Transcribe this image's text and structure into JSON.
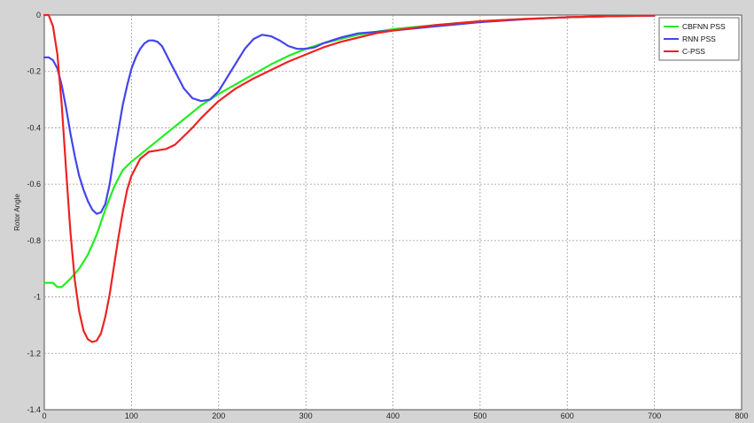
{
  "chart_data": {
    "type": "line",
    "title": "",
    "xlabel": "",
    "ylabel": "Rotor Angle",
    "xlim": [
      0,
      800
    ],
    "ylim": [
      -1.4,
      0
    ],
    "x_ticks": [
      0,
      100,
      200,
      300,
      400,
      500,
      600,
      700,
      800
    ],
    "y_ticks": [
      0,
      -0.2,
      -0.4,
      -0.6,
      -0.8,
      -1,
      -1.2,
      -1.4
    ],
    "x_tick_labels": [
      "0",
      "100",
      "200",
      "300",
      "400",
      "500",
      "600",
      "700",
      "800"
    ],
    "y_tick_labels": [
      "0",
      "-0.2",
      "-0.4",
      "-0.6",
      "-0.8",
      "-1",
      "-1.2",
      "-1.4"
    ],
    "grid": true,
    "legend_position": "top-right",
    "series": [
      {
        "name": "CBFNN PSS",
        "color": "#22ee22",
        "x": [
          0,
          10,
          15,
          20,
          25,
          30,
          40,
          50,
          60,
          70,
          80,
          90,
          100,
          120,
          140,
          160,
          180,
          200,
          220,
          240,
          260,
          280,
          300,
          320,
          340,
          360,
          380,
          400,
          450,
          500,
          550,
          600,
          650,
          700
        ],
        "y": [
          -0.95,
          -0.95,
          -0.965,
          -0.965,
          -0.95,
          -0.935,
          -0.9,
          -0.85,
          -0.78,
          -0.69,
          -0.61,
          -0.55,
          -0.52,
          -0.47,
          -0.42,
          -0.37,
          -0.32,
          -0.28,
          -0.245,
          -0.21,
          -0.175,
          -0.145,
          -0.12,
          -0.1,
          -0.085,
          -0.07,
          -0.06,
          -0.05,
          -0.035,
          -0.022,
          -0.014,
          -0.008,
          -0.004,
          -0.002
        ]
      },
      {
        "name": "RNN PSS",
        "color": "#4444ee",
        "x": [
          0,
          5,
          10,
          15,
          20,
          25,
          30,
          35,
          40,
          45,
          50,
          55,
          60,
          65,
          70,
          75,
          80,
          85,
          90,
          95,
          100,
          105,
          110,
          115,
          120,
          125,
          130,
          135,
          140,
          145,
          150,
          160,
          170,
          180,
          190,
          200,
          210,
          220,
          230,
          240,
          250,
          260,
          270,
          280,
          290,
          300,
          310,
          320,
          340,
          360,
          380,
          400,
          450,
          500,
          550,
          600,
          650,
          700
        ],
        "y": [
          -0.15,
          -0.15,
          -0.16,
          -0.19,
          -0.25,
          -0.33,
          -0.42,
          -0.5,
          -0.57,
          -0.62,
          -0.66,
          -0.69,
          -0.705,
          -0.7,
          -0.67,
          -0.6,
          -0.5,
          -0.41,
          -0.32,
          -0.25,
          -0.19,
          -0.15,
          -0.12,
          -0.1,
          -0.09,
          -0.09,
          -0.095,
          -0.11,
          -0.14,
          -0.17,
          -0.2,
          -0.26,
          -0.295,
          -0.305,
          -0.3,
          -0.27,
          -0.22,
          -0.17,
          -0.12,
          -0.085,
          -0.07,
          -0.075,
          -0.09,
          -0.11,
          -0.12,
          -0.12,
          -0.115,
          -0.1,
          -0.08,
          -0.065,
          -0.06,
          -0.055,
          -0.04,
          -0.025,
          -0.015,
          -0.008,
          -0.004,
          -0.002
        ]
      },
      {
        "name": "C-PSS",
        "color": "#ee2222",
        "x": [
          0,
          5,
          10,
          15,
          20,
          25,
          30,
          35,
          40,
          45,
          50,
          55,
          60,
          65,
          70,
          75,
          80,
          85,
          90,
          95,
          100,
          110,
          120,
          130,
          140,
          150,
          160,
          170,
          180,
          190,
          200,
          220,
          240,
          260,
          280,
          300,
          320,
          340,
          360,
          380,
          400,
          450,
          500,
          550,
          600,
          650,
          700
        ],
        "y": [
          0,
          0,
          -0.04,
          -0.14,
          -0.32,
          -0.55,
          -0.77,
          -0.94,
          -1.05,
          -1.12,
          -1.15,
          -1.16,
          -1.155,
          -1.13,
          -1.07,
          -0.99,
          -0.89,
          -0.79,
          -0.7,
          -0.62,
          -0.57,
          -0.51,
          -0.485,
          -0.48,
          -0.475,
          -0.46,
          -0.43,
          -0.4,
          -0.365,
          -0.335,
          -0.305,
          -0.26,
          -0.225,
          -0.195,
          -0.165,
          -0.14,
          -0.115,
          -0.095,
          -0.08,
          -0.065,
          -0.055,
          -0.035,
          -0.022,
          -0.014,
          -0.008,
          -0.004,
          -0.002
        ]
      }
    ]
  }
}
